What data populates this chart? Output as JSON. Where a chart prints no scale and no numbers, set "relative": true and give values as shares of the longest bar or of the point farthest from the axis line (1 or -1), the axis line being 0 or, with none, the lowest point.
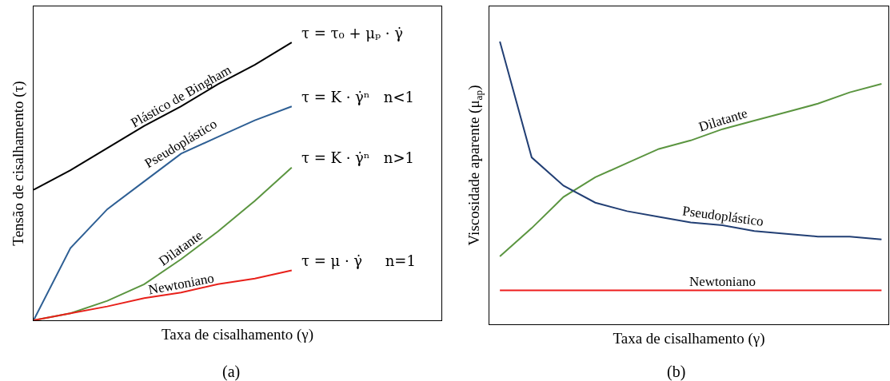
{
  "chart_data": [
    {
      "type": "line",
      "title": "(a)",
      "xlabel": "Taxa de cisalhamento (γ)",
      "ylabel": "Tensão de cisalhamento (τ)",
      "relative": true,
      "tick_labels": false,
      "legend": false,
      "marker": "none",
      "line_style": "solid",
      "categories": [
        null,
        null,
        null,
        null,
        null,
        null,
        null,
        null
      ],
      "series": [
        {
          "name": "Plástico de Bingham",
          "color": "#000000",
          "values": [
            0.47,
            0.54,
            0.62,
            0.7,
            0.77,
            0.85,
            0.92,
            1.0
          ]
        },
        {
          "name": "Pseudoplástico",
          "color": "#2e5f94",
          "values": [
            0,
            0.26,
            0.4,
            0.5,
            0.6,
            0.66,
            0.72,
            0.77
          ]
        },
        {
          "name": "Dilatante",
          "color": "#5b9540",
          "values": [
            0,
            0.025,
            0.07,
            0.13,
            0.22,
            0.32,
            0.43,
            0.55
          ]
        },
        {
          "name": "Newtoniano",
          "color": "#e8201a",
          "values": [
            0,
            0.025,
            0.05,
            0.08,
            0.1,
            0.13,
            0.15,
            0.18
          ]
        }
      ],
      "annotations": [
        "τ = τ₀ + μₚ · γ̇",
        "τ = K · γ̇ⁿ   n<1",
        "τ = K · γ̇ⁿ   n>1",
        "τ = μ · γ̇     n=1"
      ]
    },
    {
      "type": "line",
      "title": "(b)",
      "xlabel": "Taxa de cisalhamento (γ)",
      "ylabel": "Viscosidade aparente (μ$_{ap}$)",
      "relative": true,
      "tick_labels": false,
      "legend": false,
      "marker": "none",
      "line_style": "solid",
      "categories": [
        null,
        null,
        null,
        null,
        null,
        null,
        null,
        null,
        null,
        null,
        null,
        null,
        null
      ],
      "series": [
        {
          "name": "Dilatante",
          "color": "#5b9540",
          "values": [
            0.24,
            0.34,
            0.45,
            0.52,
            0.57,
            0.62,
            0.65,
            0.69,
            0.72,
            0.75,
            0.78,
            0.82,
            0.85
          ]
        },
        {
          "name": "Pseudoplástico",
          "color": "#223f74",
          "values": [
            1.0,
            0.59,
            0.49,
            0.43,
            0.4,
            0.38,
            0.36,
            0.35,
            0.33,
            0.32,
            0.31,
            0.31,
            0.3
          ]
        },
        {
          "name": "Newtoniano",
          "color": "#ee1c1c",
          "values": [
            0.12,
            0.12,
            0.12,
            0.12,
            0.12,
            0.12,
            0.12,
            0.12,
            0.12,
            0.12,
            0.12,
            0.12,
            0.12
          ]
        }
      ]
    }
  ]
}
